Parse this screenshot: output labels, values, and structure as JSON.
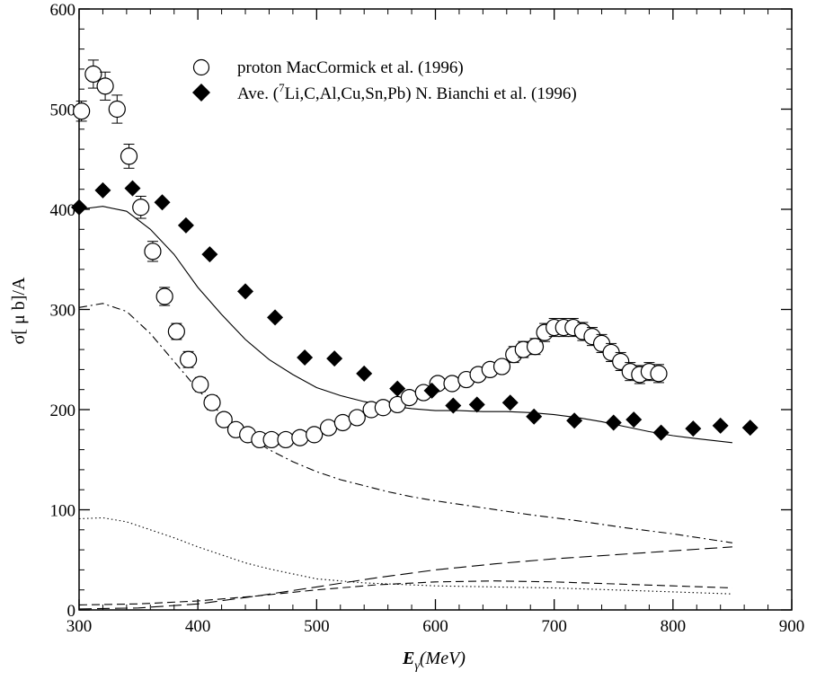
{
  "chart_data": {
    "type": "scatter",
    "xlabel": "E",
    "xlabel_sub": "γ",
    "xlabel_unit": "(MeV)",
    "ylabel": "σ[ μ b]/A",
    "xlim": [
      300,
      900
    ],
    "ylim": [
      0,
      600
    ],
    "xticks": [
      "300",
      "400",
      "500",
      "600",
      "700",
      "800",
      "900"
    ],
    "yticks": [
      "0",
      "100",
      "200",
      "300",
      "400",
      "500",
      "600"
    ],
    "legend": [
      {
        "marker": "open-circle",
        "text": "proton MacCormick et al. (1996)"
      },
      {
        "marker": "filled-diamond",
        "text_pre": "Ave. (",
        "text_sup": "7",
        "text_post": "Li,C,Al,Cu,Sn,Pb) N. Bianchi et al. (1996)"
      }
    ],
    "series": [
      {
        "name": "proton MacCormick et al. (1996)",
        "marker": "open-circle",
        "x": [
          302,
          312,
          322,
          332,
          342,
          352,
          362,
          372,
          382,
          392,
          402,
          412,
          422,
          432,
          442,
          452,
          462,
          474,
          486,
          498,
          510,
          522,
          534,
          546,
          556,
          568,
          578,
          590,
          602,
          614,
          626,
          636,
          646,
          656,
          666,
          674,
          684,
          692,
          700,
          708,
          716,
          724,
          732,
          740,
          748,
          756,
          764,
          772,
          780,
          788
        ],
        "y": [
          498,
          535,
          523,
          500,
          453,
          402,
          358,
          313,
          278,
          250,
          225,
          207,
          190,
          180,
          175,
          170,
          170,
          170,
          172,
          175,
          182,
          187,
          192,
          200,
          202,
          205,
          212,
          217,
          226,
          226,
          230,
          235,
          240,
          243,
          255,
          260,
          263,
          277,
          282,
          282,
          282,
          278,
          273,
          266,
          257,
          248,
          238,
          235,
          238,
          236
        ],
        "err": [
          10,
          14,
          14,
          14,
          12,
          11,
          10,
          9,
          8,
          8,
          7,
          7,
          6,
          6,
          6,
          6,
          6,
          6,
          6,
          6,
          6,
          6,
          6,
          6,
          6,
          6,
          6,
          6,
          6,
          6,
          6,
          6,
          6,
          6,
          8,
          8,
          8,
          9,
          9,
          9,
          9,
          9,
          9,
          9,
          9,
          9,
          9,
          9,
          9,
          9
        ]
      },
      {
        "name": "Ave. (7Li,C,Al,Cu,Sn,Pb) N. Bianchi et al. (1996)",
        "marker": "filled-diamond",
        "x": [
          300,
          320,
          345,
          370,
          390,
          410,
          440,
          465,
          490,
          515,
          540,
          568,
          597,
          615,
          635,
          663,
          683,
          717,
          750,
          767,
          790,
          817,
          840,
          865
        ],
        "y": [
          402,
          419,
          421,
          407,
          384,
          355,
          318,
          292,
          252,
          251,
          236,
          221,
          219,
          204,
          205,
          207,
          193,
          189,
          187,
          190,
          177,
          181,
          184,
          182
        ]
      },
      {
        "name": "",
        "line": "solid",
        "x": [
          300,
          320,
          340,
          360,
          380,
          400,
          420,
          440,
          460,
          480,
          500,
          520,
          540,
          560,
          580,
          600,
          620,
          640,
          660,
          680,
          700,
          720,
          740,
          760,
          780,
          800,
          820,
          850
        ],
        "y": [
          400,
          403,
          398,
          380,
          355,
          322,
          295,
          270,
          250,
          235,
          222,
          214,
          208,
          204,
          201,
          199,
          199,
          198,
          198,
          197,
          195,
          192,
          188,
          183,
          178,
          174,
          171,
          167
        ]
      },
      {
        "name": "",
        "line": "dash-dot",
        "x": [
          300,
          320,
          340,
          360,
          380,
          400,
          420,
          440,
          460,
          480,
          500,
          520,
          540,
          560,
          580,
          600,
          640,
          680,
          720,
          760,
          800,
          850
        ],
        "y": [
          302,
          306,
          298,
          276,
          248,
          220,
          195,
          175,
          160,
          148,
          138,
          130,
          124,
          118,
          113,
          109,
          102,
          95,
          89,
          82,
          76,
          67
        ]
      },
      {
        "name": "",
        "line": "dotted",
        "x": [
          300,
          320,
          340,
          360,
          380,
          400,
          420,
          440,
          460,
          480,
          500,
          520,
          540,
          560,
          580,
          600,
          650,
          700,
          750,
          800,
          850
        ],
        "y": [
          91,
          92,
          88,
          80,
          72,
          63,
          55,
          47,
          41,
          36,
          31,
          29,
          27,
          26,
          25,
          24,
          23,
          22,
          20,
          18,
          16
        ]
      },
      {
        "name": "",
        "line": "dashed",
        "x": [
          300,
          350,
          400,
          450,
          500,
          550,
          600,
          650,
          700,
          750,
          800,
          850
        ],
        "y": [
          5,
          6,
          9,
          14,
          20,
          25,
          28,
          29,
          28,
          26,
          24,
          22
        ]
      },
      {
        "name": "",
        "line": "long-dash",
        "x": [
          300,
          350,
          400,
          450,
          500,
          550,
          600,
          650,
          700,
          750,
          800,
          850
        ],
        "y": [
          1,
          2,
          6,
          14,
          23,
          32,
          40,
          46,
          51,
          55,
          59,
          63
        ]
      }
    ]
  }
}
